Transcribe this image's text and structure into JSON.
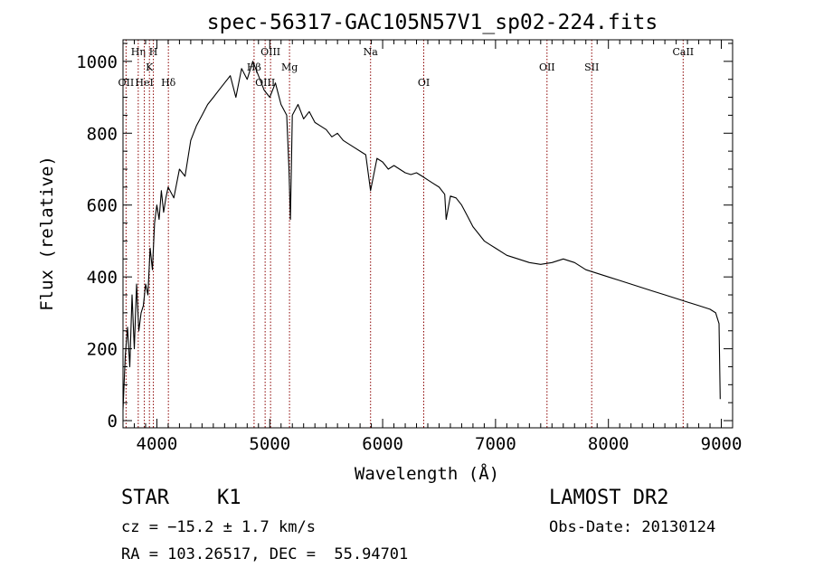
{
  "chart_data": {
    "type": "line",
    "title": "spec-56317-GAC105N57V1_sp02-224.fits",
    "xlabel": "Wavelength (Å)",
    "ylabel": "Flux (relative)",
    "xlim": [
      3700,
      9100
    ],
    "ylim": [
      -20,
      1060
    ],
    "xticks": [
      4000,
      5000,
      6000,
      7000,
      8000,
      9000
    ],
    "yticks": [
      0,
      200,
      400,
      600,
      800,
      1000
    ],
    "grid": false,
    "line_color": "#000000",
    "marker_color": "#8b0000",
    "series": [
      {
        "x": [
          3700,
          3720,
          3740,
          3760,
          3780,
          3800,
          3820,
          3840,
          3860,
          3880,
          3900,
          3920,
          3940,
          3960,
          3980,
          4000,
          4020,
          4040,
          4060,
          4080,
          4100,
          4150,
          4200,
          4250,
          4300,
          4350,
          4400,
          4450,
          4500,
          4550,
          4600,
          4650,
          4700,
          4750,
          4800,
          4850,
          4900,
          4950,
          5000,
          5050,
          5100,
          5150,
          5170,
          5183,
          5200,
          5250,
          5300,
          5350,
          5400,
          5450,
          5500,
          5550,
          5600,
          5650,
          5700,
          5750,
          5800,
          5850,
          5893,
          5950,
          6000,
          6050,
          6100,
          6150,
          6200,
          6250,
          6300,
          6350,
          6400,
          6450,
          6500,
          6550,
          6563,
          6600,
          6650,
          6700,
          6750,
          6800,
          6850,
          6900,
          6950,
          7000,
          7100,
          7200,
          7300,
          7400,
          7500,
          7600,
          7650,
          7700,
          7800,
          7900,
          8000,
          8100,
          8200,
          8300,
          8400,
          8500,
          8600,
          8700,
          8800,
          8900,
          8950,
          8980,
          8990
        ],
        "y": [
          30,
          180,
          260,
          150,
          350,
          200,
          380,
          250,
          300,
          320,
          380,
          350,
          480,
          420,
          550,
          600,
          560,
          640,
          580,
          620,
          650,
          620,
          700,
          680,
          780,
          820,
          850,
          880,
          900,
          920,
          940,
          960,
          900,
          980,
          950,
          1000,
          960,
          920,
          900,
          940,
          880,
          850,
          700,
          560,
          850,
          880,
          840,
          860,
          830,
          820,
          810,
          790,
          800,
          780,
          770,
          760,
          750,
          740,
          640,
          730,
          720,
          700,
          710,
          700,
          690,
          685,
          690,
          680,
          670,
          660,
          650,
          630,
          560,
          625,
          620,
          600,
          570,
          540,
          520,
          500,
          490,
          480,
          460,
          450,
          440,
          435,
          440,
          450,
          445,
          440,
          420,
          410,
          400,
          390,
          380,
          370,
          360,
          350,
          340,
          330,
          320,
          310,
          300,
          270,
          60
        ]
      }
    ],
    "lines": [
      {
        "label": "OII",
        "x": 3727,
        "row": 3
      },
      {
        "label": "Hη",
        "x": 3835,
        "row": 1
      },
      {
        "label": "HeI",
        "x": 3889,
        "row": 3
      },
      {
        "label": "K",
        "x": 3934,
        "row": 2
      },
      {
        "label": "H",
        "x": 3969,
        "row": 1
      },
      {
        "label": "Hδ",
        "x": 4102,
        "row": 3
      },
      {
        "label": "Hβ",
        "x": 4861,
        "row": 2
      },
      {
        "label": "OIII",
        "x": 4959,
        "row": 3
      },
      {
        "label": "OIII",
        "x": 5007,
        "row": 1
      },
      {
        "label": "Mg",
        "x": 5175,
        "row": 2
      },
      {
        "label": "Na",
        "x": 5893,
        "row": 1
      },
      {
        "label": "OI",
        "x": 6364,
        "row": 3
      },
      {
        "label": "OII",
        "x": 7456,
        "row": 2
      },
      {
        "label": "SII",
        "x": 7852,
        "row": 2
      },
      {
        "label": "CaII",
        "x": 8662,
        "row": 1
      }
    ]
  },
  "info": {
    "object_class": "STAR",
    "subclass": "K1",
    "survey": "LAMOST DR2",
    "velocity": "cz = −15.2 ± 1.7 km/s",
    "obs_date": "Obs-Date: 20130124",
    "coords": "RA = 103.26517, DEC =  55.94701"
  }
}
